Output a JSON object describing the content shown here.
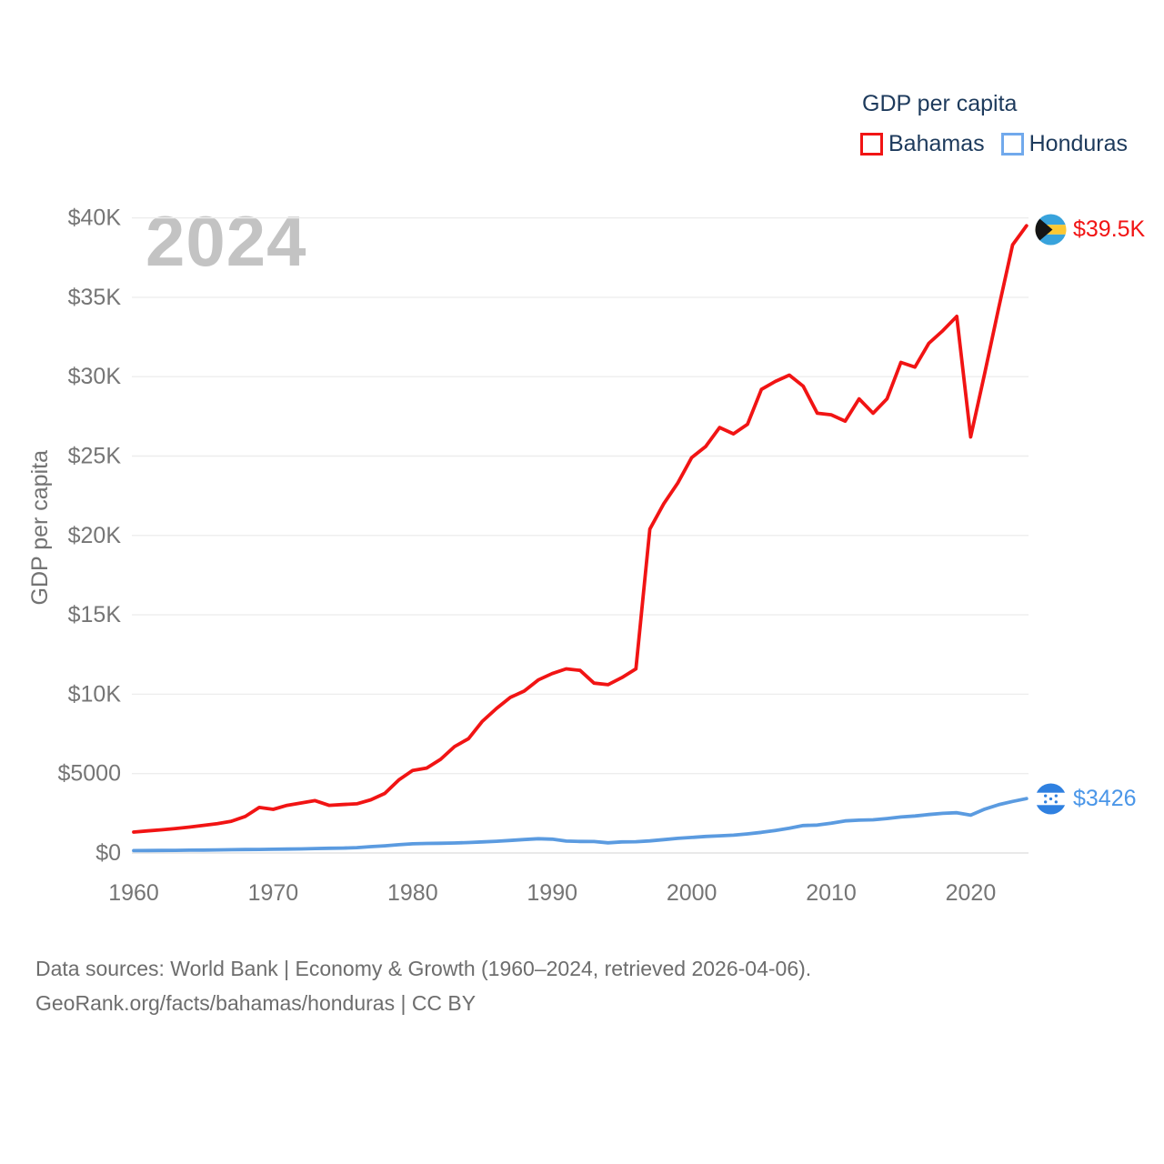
{
  "legend": {
    "title": "GDP per capita",
    "items": [
      {
        "label": "Bahamas",
        "color": "#f11414"
      },
      {
        "label": "Honduras",
        "color": "#71a9ec"
      }
    ]
  },
  "watermark": "2024",
  "y_axis_title": "GDP per capita",
  "footer": {
    "line1": "Data sources: World Bank | Economy & Growth (1960–2024, retrieved 2026-04-06).",
    "line2": "GeoRank.org/facts/bahamas/honduras | CC BY"
  },
  "chart_data": {
    "type": "line",
    "title": "GDP per capita",
    "xlabel": "",
    "ylabel": "GDP per capita",
    "xlim": [
      1960,
      2024
    ],
    "ylim": [
      0,
      40000
    ],
    "grid": true,
    "legend_position": "top-right",
    "xticks": [
      1960,
      1970,
      1980,
      1990,
      2000,
      2010,
      2020
    ],
    "yticks": [
      {
        "value": 0,
        "label": "$0"
      },
      {
        "value": 5000,
        "label": "$5000"
      },
      {
        "value": 10000,
        "label": "$10K"
      },
      {
        "value": 15000,
        "label": "$15K"
      },
      {
        "value": 20000,
        "label": "$20K"
      },
      {
        "value": 25000,
        "label": "$25K"
      },
      {
        "value": 30000,
        "label": "$30K"
      },
      {
        "value": 35000,
        "label": "$35K"
      },
      {
        "value": 40000,
        "label": "$40K"
      }
    ],
    "years": [
      1960,
      1961,
      1962,
      1963,
      1964,
      1965,
      1966,
      1967,
      1968,
      1969,
      1970,
      1971,
      1972,
      1973,
      1974,
      1975,
      1976,
      1977,
      1978,
      1979,
      1980,
      1981,
      1982,
      1983,
      1984,
      1985,
      1986,
      1987,
      1988,
      1989,
      1990,
      1991,
      1992,
      1993,
      1994,
      1995,
      1996,
      1997,
      1998,
      1999,
      2000,
      2001,
      2002,
      2003,
      2004,
      2005,
      2006,
      2007,
      2008,
      2009,
      2010,
      2011,
      2012,
      2013,
      2014,
      2015,
      2016,
      2017,
      2018,
      2019,
      2020,
      2021,
      2022,
      2023,
      2024
    ],
    "series": [
      {
        "name": "Bahamas",
        "color": "#f11414",
        "end_label": "$39.5K",
        "end_value": 39500,
        "flag_icon": "bahamas-flag-icon",
        "values": [
          1320,
          1390,
          1460,
          1540,
          1630,
          1740,
          1850,
          2000,
          2300,
          2870,
          2750,
          3000,
          3150,
          3300,
          3000,
          3050,
          3100,
          3350,
          3750,
          4600,
          5200,
          5350,
          5900,
          6700,
          7200,
          8300,
          9100,
          9800,
          10200,
          10900,
          11300,
          11600,
          11500,
          10700,
          10600,
          11050,
          11600,
          20400,
          22000,
          23300,
          24900,
          25600,
          26800,
          26400,
          27000,
          29200,
          29700,
          30100,
          29400,
          27700,
          27600,
          27200,
          28600,
          27700,
          28600,
          30900,
          30600,
          32100,
          32900,
          33800,
          26200,
          30200,
          34300,
          38300,
          39500
        ]
      },
      {
        "name": "Honduras",
        "color": "#5b9be0",
        "end_label": "$3426",
        "end_value": 3426,
        "flag_icon": "honduras-flag-icon",
        "values": [
          150,
          155,
          160,
          165,
          175,
          185,
          195,
          205,
          215,
          225,
          235,
          245,
          260,
          280,
          300,
          310,
          340,
          400,
          450,
          520,
          580,
          600,
          610,
          630,
          660,
          700,
          740,
          790,
          850,
          900,
          870,
          750,
          730,
          720,
          640,
          700,
          710,
          760,
          840,
          920,
          980,
          1040,
          1080,
          1120,
          1200,
          1300,
          1420,
          1560,
          1730,
          1760,
          1880,
          2020,
          2070,
          2090,
          2170,
          2270,
          2330,
          2420,
          2500,
          2540,
          2380,
          2760,
          3040,
          3250,
          3426
        ]
      }
    ],
    "end_label_colors": {
      "Bahamas": "#f11414",
      "Honduras": "#4a96e8"
    }
  }
}
